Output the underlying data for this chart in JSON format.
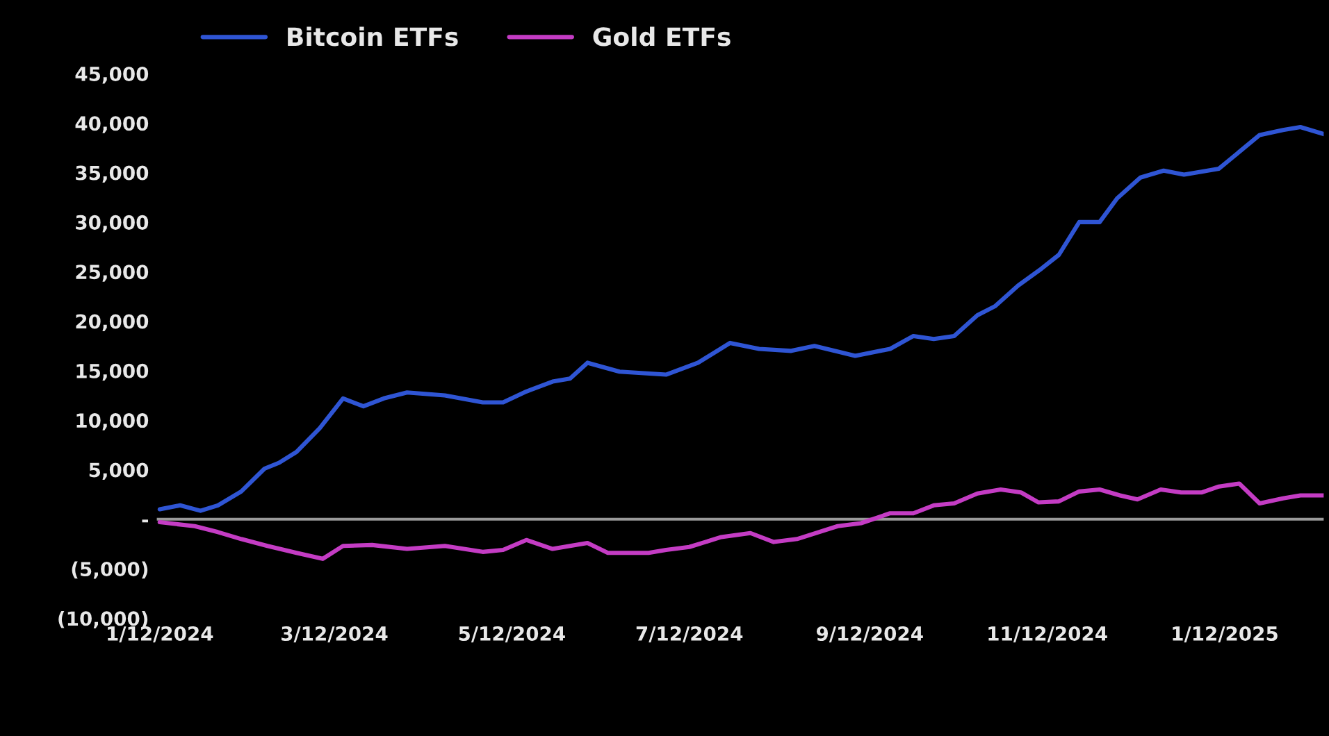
{
  "chart_data": {
    "type": "line",
    "series": [
      {
        "name": "Bitcoin ETFs",
        "color": "#2f55d4",
        "x": [
          "2024-01-12",
          "2024-01-19",
          "2024-01-26",
          "2024-02-01",
          "2024-02-09",
          "2024-02-17",
          "2024-02-22",
          "2024-02-28",
          "2024-03-07",
          "2024-03-15",
          "2024-03-22",
          "2024-03-29",
          "2024-04-06",
          "2024-04-19",
          "2024-05-02",
          "2024-05-09",
          "2024-05-17",
          "2024-05-26",
          "2024-06-01",
          "2024-06-07",
          "2024-06-18",
          "2024-07-04",
          "2024-07-15",
          "2024-07-26",
          "2024-08-05",
          "2024-08-16",
          "2024-08-24",
          "2024-09-07",
          "2024-09-19",
          "2024-09-27",
          "2024-10-04",
          "2024-10-11",
          "2024-10-19",
          "2024-10-25",
          "2024-11-02",
          "2024-11-10",
          "2024-11-16",
          "2024-11-23",
          "2024-11-30",
          "2024-12-06",
          "2024-12-14",
          "2024-12-22",
          "2024-12-29",
          "2025-01-10",
          "2025-01-17",
          "2025-01-24",
          "2025-02-01",
          "2025-02-07",
          "2025-02-15"
        ],
        "values": [
          1000,
          1400,
          850,
          1400,
          2800,
          5100,
          5700,
          6800,
          9200,
          12200,
          11400,
          12200,
          12800,
          12500,
          11800,
          11800,
          12900,
          13900,
          14200,
          15800,
          14900,
          14600,
          15800,
          17800,
          17200,
          17000,
          17500,
          16500,
          17200,
          18500,
          18200,
          18500,
          20600,
          21500,
          23600,
          25300,
          26700,
          30000,
          30000,
          32400,
          34500,
          35200,
          34800,
          35400,
          37100,
          38800,
          39300,
          39600,
          38900
        ]
      },
      {
        "name": "Gold ETFs",
        "color": "#c43cc4",
        "x": [
          "2024-01-12",
          "2024-01-24",
          "2024-02-01",
          "2024-02-09",
          "2024-02-18",
          "2024-02-28",
          "2024-03-08",
          "2024-03-15",
          "2024-03-25",
          "2024-04-06",
          "2024-04-19",
          "2024-05-02",
          "2024-05-09",
          "2024-05-17",
          "2024-05-26",
          "2024-06-07",
          "2024-06-14",
          "2024-06-28",
          "2024-07-04",
          "2024-07-12",
          "2024-07-23",
          "2024-08-02",
          "2024-08-10",
          "2024-08-18",
          "2024-09-01",
          "2024-09-09",
          "2024-09-19",
          "2024-09-27",
          "2024-10-04",
          "2024-10-11",
          "2024-10-19",
          "2024-10-27",
          "2024-11-03",
          "2024-11-09",
          "2024-11-16",
          "2024-11-23",
          "2024-11-30",
          "2024-12-07",
          "2024-12-13",
          "2024-12-21",
          "2024-12-28",
          "2025-01-04",
          "2025-01-10",
          "2025-01-17",
          "2025-01-24",
          "2025-02-01",
          "2025-02-07",
          "2025-02-15"
        ],
        "values": [
          -300,
          -700,
          -1300,
          -2000,
          -2700,
          -3400,
          -4000,
          -2700,
          -2600,
          -3000,
          -2700,
          -3300,
          -3100,
          -2100,
          -3000,
          -2400,
          -3400,
          -3400,
          -3100,
          -2800,
          -1800,
          -1400,
          -2300,
          -2000,
          -700,
          -400,
          600,
          600,
          1400,
          1600,
          2600,
          3000,
          2700,
          1700,
          1800,
          2800,
          3000,
          2400,
          2000,
          3000,
          2700,
          2700,
          3300,
          3600,
          1600,
          2100,
          2400,
          2400
        ]
      }
    ],
    "xlim": [
      "2024-01-11",
      "2025-02-15"
    ],
    "xticks": [
      {
        "value": "2024-01-12",
        "label": "1/12/2024"
      },
      {
        "value": "2024-03-12",
        "label": "3/12/2024"
      },
      {
        "value": "2024-05-12",
        "label": "5/12/2024"
      },
      {
        "value": "2024-07-12",
        "label": "7/12/2024"
      },
      {
        "value": "2024-09-12",
        "label": "9/12/2024"
      },
      {
        "value": "2024-11-12",
        "label": "11/12/2024"
      },
      {
        "value": "2025-01-12",
        "label": "1/12/2025"
      }
    ],
    "ylim": [
      -10000,
      45000
    ],
    "yticks": [
      {
        "value": -10000,
        "label": "(10,000)"
      },
      {
        "value": -5000,
        "label": "(5,000)"
      },
      {
        "value": 0,
        "label": "-"
      },
      {
        "value": 5000,
        "label": "5,000"
      },
      {
        "value": 10000,
        "label": "10,000"
      },
      {
        "value": 15000,
        "label": "15,000"
      },
      {
        "value": 20000,
        "label": "20,000"
      },
      {
        "value": 25000,
        "label": "25,000"
      },
      {
        "value": 30000,
        "label": "30,000"
      },
      {
        "value": 35000,
        "label": "35,000"
      },
      {
        "value": 40000,
        "label": "40,000"
      },
      {
        "value": 45000,
        "label": "45,000"
      }
    ],
    "ref_lines": [
      {
        "axis": "y",
        "value": 0,
        "color": "#9a9a9a"
      }
    ],
    "grid": false,
    "legend": "top",
    "marker": "none",
    "line_style": "solid"
  }
}
